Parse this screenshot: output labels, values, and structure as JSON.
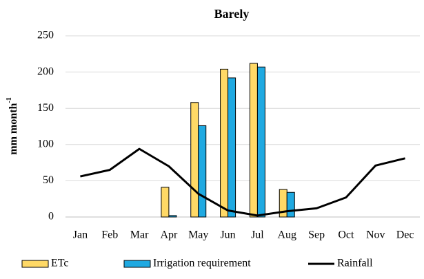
{
  "chart_data": {
    "type": "bar",
    "title": "Barely",
    "y_label": "mm month",
    "y_label_sup": "-1",
    "categories": [
      "Jan",
      "Feb",
      "Mar",
      "Apr",
      "May",
      "Jun",
      "Jul",
      "Aug",
      "Sep",
      "Oct",
      "Nov",
      "Dec"
    ],
    "series": [
      {
        "name": "ETc",
        "type": "bar",
        "color": "#ffd966",
        "values": [
          null,
          null,
          null,
          41,
          158,
          204,
          212,
          38,
          null,
          null,
          null,
          null
        ]
      },
      {
        "name": "Irrigation requirement",
        "type": "bar",
        "color": "#1fa9e1",
        "values": [
          null,
          null,
          null,
          2,
          126,
          192,
          207,
          34,
          null,
          null,
          null,
          null
        ]
      },
      {
        "name": "Rainfall",
        "type": "line",
        "color": "#000000",
        "values": [
          56,
          65,
          94,
          70,
          32,
          9,
          2,
          8,
          12,
          27,
          71,
          81
        ]
      }
    ],
    "ylim": [
      0,
      250
    ],
    "yticks": [
      0,
      50,
      100,
      150,
      200,
      250
    ],
    "grid": true,
    "legend": "bottom"
  }
}
